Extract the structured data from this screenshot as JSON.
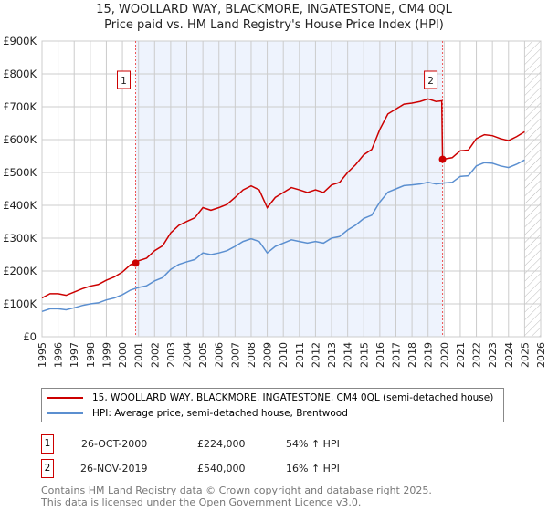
{
  "title_line1": "15, WOOLLARD WAY, BLACKMORE, INGATESTONE, CM4 0QL",
  "title_line2": "Price paid vs. HM Land Registry's House Price Index (HPI)",
  "chart_data": {
    "type": "line",
    "xlim": [
      1995,
      2026
    ],
    "ylim": [
      0,
      900000
    ],
    "y_ticks": [
      0,
      100000,
      200000,
      300000,
      400000,
      500000,
      600000,
      700000,
      800000,
      900000
    ],
    "y_tick_labels": [
      "£0",
      "£100K",
      "£200K",
      "£300K",
      "£400K",
      "£500K",
      "£600K",
      "£700K",
      "£800K",
      "£900K"
    ],
    "x_ticks": [
      "1995",
      "1996",
      "1997",
      "1998",
      "1999",
      "2000",
      "2001",
      "2002",
      "2003",
      "2004",
      "2005",
      "2006",
      "2007",
      "2008",
      "2009",
      "2010",
      "2011",
      "2012",
      "2013",
      "2014",
      "2015",
      "2016",
      "2017",
      "2018",
      "2019",
      "2020",
      "2021",
      "2022",
      "2023",
      "2024",
      "2025",
      "2026"
    ],
    "grid": true,
    "shaded_range": [
      2000.82,
      2019.9
    ],
    "hatched_from": 2025.0,
    "series": [
      {
        "name": "15, WOOLLARD WAY, BLACKMORE, INGATESTONE, CM4 0QL (semi-detached house)",
        "color": "#cc0000",
        "x": [
          1995,
          1995.5,
          1996,
          1996.5,
          1997,
          1997.5,
          1998,
          1998.5,
          1999,
          1999.5,
          2000,
          2000.5,
          2001,
          2001.5,
          2002,
          2002.5,
          2003,
          2003.5,
          2004,
          2004.5,
          2005,
          2005.5,
          2006,
          2006.5,
          2007,
          2007.5,
          2008,
          2008.5,
          2009,
          2009.5,
          2010,
          2010.5,
          2011,
          2011.5,
          2012,
          2012.5,
          2013,
          2013.5,
          2014,
          2014.5,
          2015,
          2015.5,
          2016,
          2016.5,
          2017,
          2017.5,
          2018,
          2018.5,
          2019,
          2019.5,
          2019.85,
          2019.9,
          2020.5,
          2021,
          2021.5,
          2022,
          2022.5,
          2023,
          2023.5,
          2024,
          2024.5,
          2025
        ],
        "values": [
          118000,
          131000,
          131000,
          126000,
          136000,
          146000,
          154000,
          159000,
          172000,
          182000,
          197000,
          219000,
          231000,
          239000,
          262000,
          277000,
          316000,
          339000,
          351000,
          362000,
          393000,
          385000,
          393000,
          403000,
          424000,
          447000,
          459000,
          447000,
          393000,
          424000,
          439000,
          454000,
          447000,
          439000,
          447000,
          439000,
          462000,
          470000,
          500000,
          524000,
          554000,
          570000,
          631000,
          678000,
          693000,
          708000,
          711000,
          716000,
          724000,
          716000,
          718000,
          540000,
          545000,
          566000,
          568000,
          603000,
          615000,
          612000,
          603000,
          597000,
          609000,
          624000
        ]
      },
      {
        "name": "HPI: Average price, semi-detached house, Brentwood",
        "color": "#5b8fd0",
        "x": [
          1995,
          1995.5,
          1996,
          1996.5,
          1997,
          1997.5,
          1998,
          1998.5,
          1999,
          1999.5,
          2000,
          2000.5,
          2001,
          2001.5,
          2002,
          2002.5,
          2003,
          2003.5,
          2004,
          2004.5,
          2005,
          2005.5,
          2006,
          2006.5,
          2007,
          2007.5,
          2008,
          2008.5,
          2009,
          2009.5,
          2010,
          2010.5,
          2011,
          2011.5,
          2012,
          2012.5,
          2013,
          2013.5,
          2014,
          2014.5,
          2015,
          2015.5,
          2016,
          2016.5,
          2017,
          2017.5,
          2018,
          2018.5,
          2019,
          2019.5,
          2020,
          2020.5,
          2021,
          2021.5,
          2022,
          2022.5,
          2023,
          2023.5,
          2024,
          2024.5,
          2025
        ],
        "values": [
          77000,
          85000,
          85000,
          82000,
          88000,
          95000,
          100000,
          103000,
          112000,
          118000,
          128000,
          142000,
          150000,
          155000,
          170000,
          180000,
          205000,
          220000,
          228000,
          235000,
          255000,
          250000,
          255000,
          262000,
          275000,
          290000,
          298000,
          290000,
          255000,
          275000,
          285000,
          295000,
          290000,
          285000,
          290000,
          285000,
          300000,
          305000,
          325000,
          340000,
          360000,
          370000,
          410000,
          440000,
          450000,
          460000,
          462000,
          465000,
          470000,
          465000,
          468000,
          470000,
          488000,
          490000,
          520000,
          530000,
          528000,
          520000,
          515000,
          525000,
          538000
        ]
      }
    ],
    "sales": [
      {
        "label": "1",
        "date": "26-OCT-2000",
        "x": 2000.82,
        "price_value": 224000,
        "price": "£224,000",
        "hpi": "54% ↑ HPI"
      },
      {
        "label": "2",
        "date": "26-NOV-2019",
        "x": 2019.9,
        "price_value": 540000,
        "price": "£540,000",
        "hpi": "16% ↑ HPI"
      }
    ]
  },
  "footer_line1": "Contains HM Land Registry data © Crown copyright and database right 2025.",
  "footer_line2": "This data is licensed under the Open Government Licence v3.0."
}
